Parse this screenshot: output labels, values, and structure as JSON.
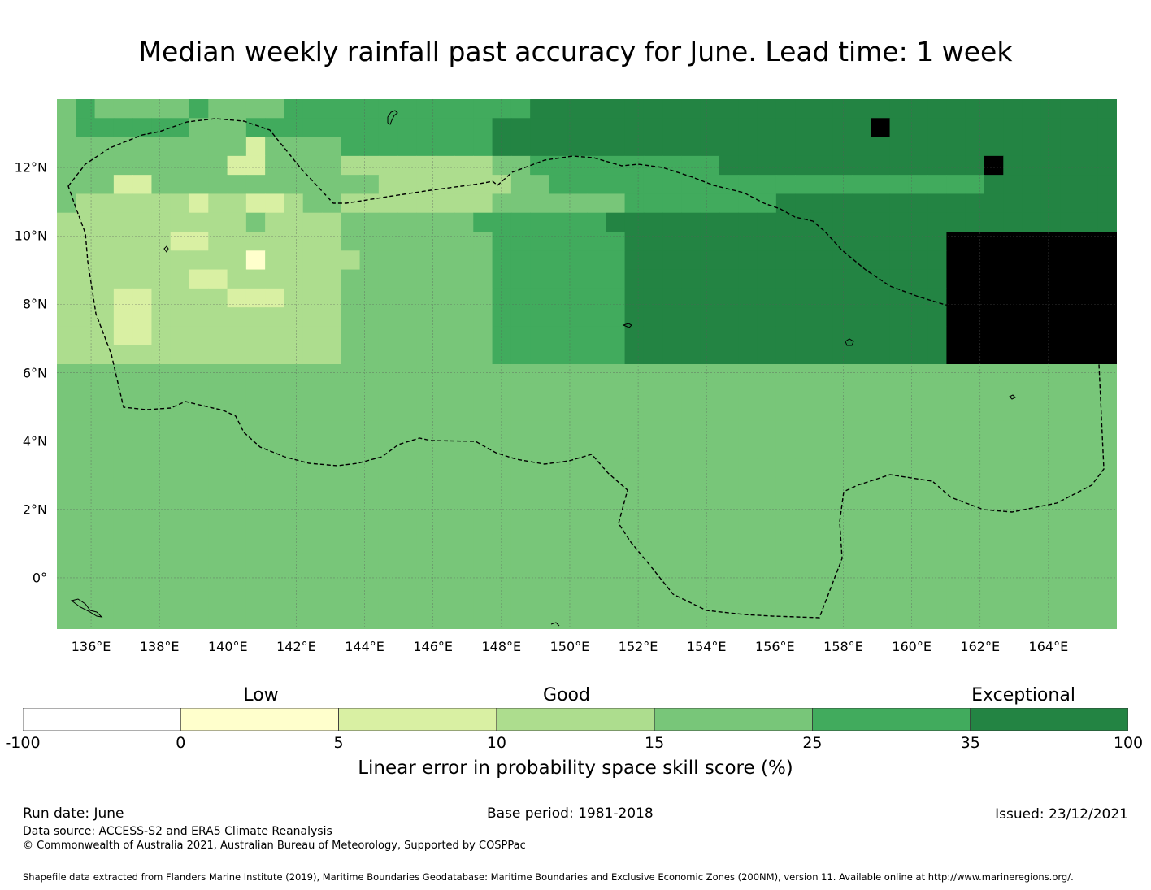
{
  "title": "Median weekly rainfall past accuracy for June. Lead time: 1 week",
  "map": {
    "lon_range": [
      135,
      166
    ],
    "lat_range": [
      -1.5,
      14
    ],
    "x_ticks": [
      "136°E",
      "138°E",
      "140°E",
      "142°E",
      "144°E",
      "146°E",
      "148°E",
      "150°E",
      "152°E",
      "154°E",
      "156°E",
      "158°E",
      "160°E",
      "162°E",
      "164°E"
    ],
    "y_ticks": [
      "12°N",
      "10°N",
      "8°N",
      "6°N",
      "4°N",
      "2°N",
      "0°"
    ],
    "eez_boundary_style": "dashed black",
    "graticule": "dotted gray",
    "skill_grid_rows_north_to_south": [
      "45444445444455555555555556666666666666666666666666666666",
      "45555554445555555555555666666666666666666667666666666666",
      "44444444442444455555555666666666666666666666666666666666",
      "44444444422444433333333445555555555666666666666667666666",
      "44422444444444444333333344555555555555555555555556666666",
      "43333332332234433333333444444455555555666666666666666666",
      "33333333334333344444445555555666666666666666666666666666",
      "33333322333333344444444555555566666666666666666777777777",
      "33333333331333334444444555555566666666666666666777777777",
      "33333332233333344444444555555566666666666666666777777777",
      "33322333322233344444444555555566666666666666666777777777",
      "33322333333333344444444555555566666666666666666777777777",
      "33322333333333344444444555555566666666666666666777777777",
      "33333333333333344444444555555566666666666666666777777777",
      "44444444444444444444444444444444444444444444444444444444",
      "44444444444444444444444444444444444444444444444444444444",
      "44444444444444444444444444444444444444444444444444444444",
      "44444444444444444444444444444444444444444444444444444444",
      "44444444444444444444444444444444444444444444444444444444",
      "44444444444444444444444444444444444444444444444444444444",
      "44444444444444444444444444444444444444444444444444444444",
      "44444444444444444444444444444444444444444444444444444444",
      "44444444444444444444444444444444444444444444444444444444",
      "44444444444444444444444444444444444444444444444444444444",
      "44444444444444444444444444444444444444444444444444444444",
      "44444444444444444444444444444444444444444444444444444444",
      "44444444444444444444444444444444444444444444444444444444",
      "44444444444444444444444444444444444444444444444444444444"
    ]
  },
  "colorbar": {
    "categories": [
      "Low",
      "Good",
      "Exceptional"
    ],
    "bounds": [
      "-100",
      "0",
      "5",
      "10",
      "15",
      "25",
      "35",
      "100"
    ],
    "colors": [
      "#ffffff",
      "#ffffcc",
      "#d9f0a3",
      "#addd8e",
      "#78c679",
      "#41ab5d",
      "#238443"
    ],
    "label": "Linear error in probability space skill score (%)"
  },
  "footer": {
    "run_date": "Run date: June",
    "base_period": "Base period: 1981-2018",
    "issued": "Issued: 23/12/2021",
    "data_source": "Data source: ACCESS-S2 and ERA5 Climate Reanalysis",
    "copyright": "© Commonwealth of Australia 2021, Australian Bureau of Meteorology, Supported by COSPPac",
    "shapefile": "Shapefile data extracted from Flanders Marine Institute (2019), Maritime Boundaries Geodatabase: Maritime Boundaries and Exclusive Economic Zones (200NM), version 11. Available online at http://www.marineregions.org/."
  }
}
